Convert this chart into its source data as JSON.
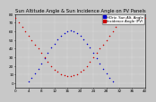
{
  "title": "Sun Altitude Angle & Sun Incidence Angle on PV Panels",
  "legend_blue": "HOriz. Sun Alt. Angle",
  "legend_red": "Incidence Angle (PV)",
  "background_color": "#c8c8c8",
  "plot_bg": "#c8c8c8",
  "blue_color": "#0000cc",
  "red_color": "#cc0000",
  "x_values": [
    0,
    1,
    2,
    3,
    4,
    5,
    6,
    7,
    8,
    9,
    10,
    11,
    12,
    13,
    14,
    15,
    16,
    17,
    18,
    19,
    20,
    21,
    22,
    23,
    24,
    25,
    26,
    27,
    28,
    29,
    30,
    31,
    32,
    33,
    34,
    35,
    36,
    37,
    38,
    39,
    40
  ],
  "blue_y": [
    -5,
    -4,
    -3,
    -1,
    2,
    6,
    11,
    17,
    23,
    29,
    35,
    41,
    46,
    51,
    55,
    58,
    60,
    61,
    60,
    58,
    55,
    51,
    46,
    41,
    35,
    29,
    23,
    17,
    11,
    6,
    2,
    -1,
    -3,
    -4,
    -5,
    -5,
    -5,
    -5,
    -5,
    -5,
    -5
  ],
  "red_y": [
    75,
    70,
    65,
    60,
    55,
    50,
    45,
    40,
    35,
    30,
    25,
    20,
    16,
    13,
    10,
    9,
    8,
    8,
    9,
    10,
    13,
    16,
    20,
    25,
    30,
    35,
    40,
    45,
    50,
    55,
    60,
    65,
    70,
    75,
    75,
    75,
    75,
    75,
    75,
    75,
    75
  ],
  "xlim": [
    0,
    40
  ],
  "ylim": [
    -5,
    80
  ],
  "ytick_vals": [
    0,
    10,
    20,
    30,
    40,
    50,
    60,
    70,
    80
  ],
  "xtick_step": 4,
  "title_fontsize": 3.8,
  "tick_fontsize": 3.0,
  "legend_fontsize": 2.8,
  "marker_size": 1.2
}
